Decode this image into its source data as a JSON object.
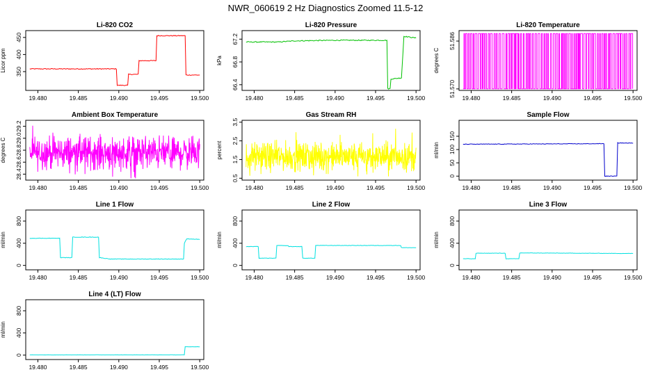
{
  "page_title": "NWR_060619  2 Hz Diagnostics Zoomed 11.5-12",
  "chart_data": [
    {
      "type": "line",
      "title": "Li-820 CO2",
      "ylabel": "Licor ppm",
      "color": "#ff0000",
      "xlim": [
        19.4785,
        19.5005
      ],
      "ylim": [
        295,
        470
      ],
      "xticks": [
        19.48,
        19.485,
        19.49,
        19.495,
        19.5
      ],
      "xtick_labels": [
        "19.480",
        "19.485",
        "19.490",
        "19.495",
        "19.500"
      ],
      "yticks": [
        350,
        400,
        450
      ],
      "ytick_labels": [
        "350",
        "400",
        "450"
      ],
      "points": [
        [
          19.479,
          358
        ],
        [
          19.4898,
          358
        ],
        [
          19.4898,
          310
        ],
        [
          19.4912,
          310
        ],
        [
          19.4912,
          342
        ],
        [
          19.4925,
          342
        ],
        [
          19.4925,
          382
        ],
        [
          19.4947,
          382
        ],
        [
          19.4947,
          455
        ],
        [
          19.4983,
          455
        ],
        [
          19.4983,
          340
        ],
        [
          19.5,
          340
        ]
      ],
      "noise": 1.2
    },
    {
      "type": "line",
      "title": "Li-820 Pressure",
      "ylabel": "kPa",
      "color": "#00c000",
      "xlim": [
        19.4785,
        19.5005
      ],
      "ylim": [
        66.3,
        67.35
      ],
      "xticks": [
        19.48,
        19.485,
        19.49,
        19.495,
        19.5
      ],
      "xtick_labels": [
        "19.480",
        "19.485",
        "19.490",
        "19.495",
        "19.500"
      ],
      "yticks": [
        66.4,
        66.8,
        67.2
      ],
      "ytick_labels": [
        "66.4",
        "66.8",
        "67.2"
      ],
      "points": [
        [
          19.479,
          67.15
        ],
        [
          19.483,
          67.15
        ],
        [
          19.485,
          67.17
        ],
        [
          19.49,
          67.18
        ],
        [
          19.4965,
          67.18
        ],
        [
          19.4965,
          66.33
        ],
        [
          19.4969,
          66.33
        ],
        [
          19.4969,
          66.5
        ],
        [
          19.4982,
          66.52
        ],
        [
          19.4985,
          67.25
        ],
        [
          19.5,
          67.22
        ]
      ],
      "noise": 0.008
    },
    {
      "type": "line",
      "title": "Li-820 Temperature",
      "ylabel": "degrees C",
      "color": "#ff00ff",
      "xlim": [
        19.4785,
        19.5005
      ],
      "ylim": [
        51.5695,
        51.5895
      ],
      "xticks": [
        19.48,
        19.485,
        19.49,
        19.495,
        19.5
      ],
      "xtick_labels": [
        "19.480",
        "19.485",
        "19.490",
        "19.495",
        "19.500"
      ],
      "yticks": [
        51.57,
        51.586
      ],
      "ytick_labels": [
        "51.570",
        "51.586"
      ],
      "binary_levels": [
        51.57,
        51.5885
      ],
      "transition_count": 140
    },
    {
      "type": "line",
      "title": "Ambient Box Temperature",
      "ylabel": "degrees C",
      "color": "#ff00ff",
      "xlim": [
        19.4785,
        19.5005
      ],
      "ylim": [
        28.3,
        29.3
      ],
      "xticks": [
        19.48,
        19.485,
        19.49,
        19.495,
        19.5
      ],
      "xtick_labels": [
        "19.480",
        "19.485",
        "19.490",
        "19.495",
        "19.500"
      ],
      "yticks": [
        28.4,
        28.6,
        28.8,
        29.0,
        29.2
      ],
      "ytick_labels": [
        "28.4",
        "28.6",
        "28.8",
        "29.0",
        "29.2"
      ],
      "noise_band": {
        "center": 28.76,
        "spread": 0.2,
        "min": 28.33,
        "max": 29.25
      }
    },
    {
      "type": "line",
      "title": "Gas Stream RH",
      "ylabel": "percent",
      "color": "#ffff00",
      "xlim": [
        19.4785,
        19.5005
      ],
      "ylim": [
        0.4,
        3.6
      ],
      "xticks": [
        19.48,
        19.485,
        19.49,
        19.495,
        19.5
      ],
      "xtick_labels": [
        "19.480",
        "19.485",
        "19.490",
        "19.495",
        "19.500"
      ],
      "yticks": [
        0.5,
        1.5,
        2.5,
        3.5
      ],
      "ytick_labels": [
        "0.5",
        "1.5",
        "2.5",
        "3.5"
      ],
      "noise_band": {
        "center": 1.65,
        "spread": 0.55,
        "min": 0.6,
        "max": 3.4
      }
    },
    {
      "type": "line",
      "title": "Sample Flow",
      "ylabel": "ml/min",
      "color": "#0000cc",
      "xlim": [
        19.4785,
        19.5005
      ],
      "ylim": [
        -15,
        210
      ],
      "xticks": [
        19.48,
        19.485,
        19.49,
        19.495,
        19.5
      ],
      "xtick_labels": [
        "19.480",
        "19.485",
        "19.490",
        "19.495",
        "19.500"
      ],
      "yticks": [
        0,
        50,
        100,
        150
      ],
      "ytick_labels": [
        "0",
        "50",
        "100",
        "150"
      ],
      "points": [
        [
          19.479,
          120
        ],
        [
          19.4965,
          122
        ],
        [
          19.4965,
          0
        ],
        [
          19.4981,
          0
        ],
        [
          19.4981,
          125
        ],
        [
          19.5,
          124
        ]
      ],
      "noise": 1.0
    },
    {
      "type": "line",
      "title": "Line 1 Flow",
      "ylabel": "ml/min",
      "color": "#00e0e0",
      "xlim": [
        19.4785,
        19.5005
      ],
      "ylim": [
        -80,
        1000
      ],
      "xticks": [
        19.48,
        19.485,
        19.49,
        19.495,
        19.5
      ],
      "xtick_labels": [
        "19.480",
        "19.485",
        "19.490",
        "19.495",
        "19.500"
      ],
      "yticks": [
        0,
        400,
        800
      ],
      "ytick_labels": [
        "0",
        "400",
        "800"
      ],
      "points": [
        [
          19.479,
          490
        ],
        [
          19.4828,
          490
        ],
        [
          19.4828,
          140
        ],
        [
          19.4843,
          140
        ],
        [
          19.4843,
          510
        ],
        [
          19.4876,
          510
        ],
        [
          19.4876,
          140
        ],
        [
          19.489,
          115
        ],
        [
          19.4981,
          115
        ],
        [
          19.4981,
          400
        ],
        [
          19.4984,
          480
        ],
        [
          19.5,
          470
        ]
      ],
      "noise": 4
    },
    {
      "type": "line",
      "title": "Line 2 Flow",
      "ylabel": "ml/min",
      "color": "#00e0e0",
      "xlim": [
        19.4785,
        19.5005
      ],
      "ylim": [
        -80,
        1000
      ],
      "xticks": [
        19.48,
        19.485,
        19.49,
        19.495,
        19.5
      ],
      "xtick_labels": [
        "19.480",
        "19.485",
        "19.490",
        "19.495",
        "19.500"
      ],
      "yticks": [
        0,
        400,
        800
      ],
      "ytick_labels": [
        "0",
        "400",
        "800"
      ],
      "points": [
        [
          19.479,
          340
        ],
        [
          19.4806,
          340
        ],
        [
          19.4806,
          130
        ],
        [
          19.4828,
          130
        ],
        [
          19.4828,
          360
        ],
        [
          19.4843,
          355
        ],
        [
          19.4843,
          340
        ],
        [
          19.486,
          340
        ],
        [
          19.486,
          130
        ],
        [
          19.4876,
          130
        ],
        [
          19.4876,
          360
        ],
        [
          19.4982,
          360
        ],
        [
          19.4982,
          320
        ],
        [
          19.5,
          320
        ]
      ],
      "noise": 3
    },
    {
      "type": "line",
      "title": "Line 3 Flow",
      "ylabel": "ml/min",
      "color": "#00e0e0",
      "xlim": [
        19.4785,
        19.5005
      ],
      "ylim": [
        -80,
        1000
      ],
      "xticks": [
        19.48,
        19.485,
        19.49,
        19.495,
        19.5
      ],
      "xtick_labels": [
        "19.480",
        "19.485",
        "19.490",
        "19.495",
        "19.500"
      ],
      "yticks": [
        0,
        400,
        800
      ],
      "ytick_labels": [
        "0",
        "400",
        "800"
      ],
      "points": [
        [
          19.479,
          120
        ],
        [
          19.4806,
          120
        ],
        [
          19.4806,
          220
        ],
        [
          19.4843,
          220
        ],
        [
          19.4843,
          120
        ],
        [
          19.486,
          120
        ],
        [
          19.486,
          225
        ],
        [
          19.5,
          215
        ]
      ],
      "noise": 3
    },
    {
      "type": "line",
      "title": "Line 4 (LT) Flow",
      "ylabel": "ml/min",
      "color": "#00e0e0",
      "xlim": [
        19.4785,
        19.5005
      ],
      "ylim": [
        -80,
        1000
      ],
      "xticks": [
        19.48,
        19.485,
        19.49,
        19.495,
        19.5
      ],
      "xtick_labels": [
        "19.480",
        "19.485",
        "19.490",
        "19.495",
        "19.500"
      ],
      "yticks": [
        0,
        400,
        800
      ],
      "ytick_labels": [
        "0",
        "400",
        "800"
      ],
      "points": [
        [
          19.479,
          5
        ],
        [
          19.4982,
          5
        ],
        [
          19.4982,
          150
        ],
        [
          19.5,
          150
        ]
      ],
      "noise": 2
    }
  ]
}
